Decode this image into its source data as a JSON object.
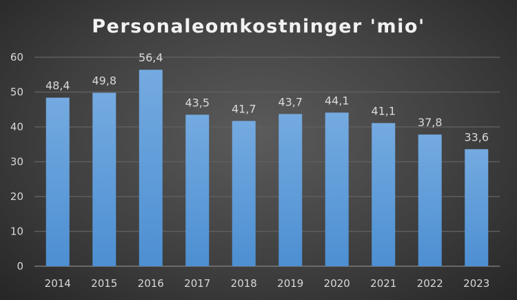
{
  "chart_data": {
    "type": "bar",
    "title": "Personaleomkostninger 'mio'",
    "categories": [
      "2014",
      "2015",
      "2016",
      "2017",
      "2018",
      "2019",
      "2020",
      "2021",
      "2022",
      "2023"
    ],
    "values": [
      48.4,
      49.8,
      56.4,
      43.5,
      41.7,
      43.7,
      44.1,
      41.1,
      37.8,
      33.6
    ],
    "data_labels": [
      "48,4",
      "49,8",
      "56,4",
      "43,5",
      "41,7",
      "43,7",
      "44,1",
      "41,1",
      "37,8",
      "33,6"
    ],
    "xlabel": "",
    "ylabel": "",
    "ylim": [
      0,
      60
    ],
    "yticks": [
      "0",
      "10",
      "20",
      "30",
      "40",
      "50",
      "60"
    ],
    "grid": true,
    "legend": "none",
    "colors": {
      "bar_top": "#74aae0",
      "bar_bottom": "#4d8fd2",
      "grid": "#5e5e5e"
    }
  }
}
